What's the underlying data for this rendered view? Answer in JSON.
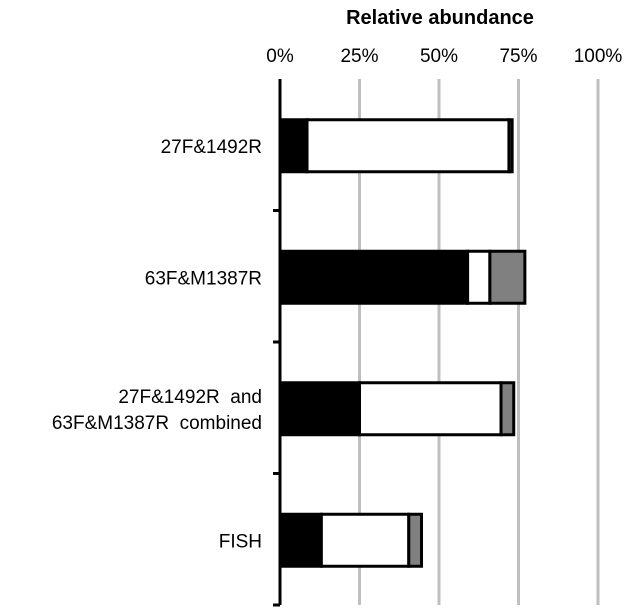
{
  "chart_data": {
    "type": "bar",
    "orientation": "horizontal",
    "stacked": true,
    "title": "",
    "xlabel": "Relative abundance",
    "xlabel_position": "top",
    "xlim": [
      0,
      100
    ],
    "xticks": [
      "0%",
      "25%",
      "50%",
      "75%",
      "100%"
    ],
    "grid": true,
    "legend": "none",
    "categories": [
      [
        "27F&1492R"
      ],
      [
        "63F&M1387R"
      ],
      [
        "27F&1492R  and",
        "63F&M1387R  combined"
      ],
      [
        "FISH"
      ]
    ],
    "series": [
      {
        "color": "#000000",
        "values": [
          8.5,
          59,
          25,
          13
        ]
      },
      {
        "color": "#ffffff",
        "values": [
          63.5,
          7,
          44.5,
          27.5
        ]
      },
      {
        "color": "#808080",
        "values": [
          1,
          11,
          4,
          4
        ]
      }
    ]
  }
}
